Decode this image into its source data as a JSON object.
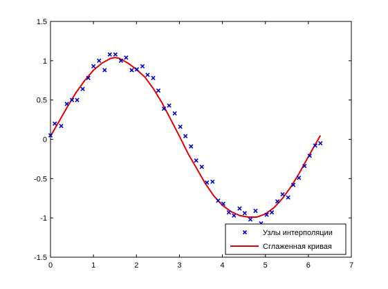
{
  "chart_data": {
    "type": "scatter",
    "xlim": [
      0,
      7
    ],
    "ylim": [
      -1.5,
      1.5
    ],
    "x_ticks": [
      0,
      1,
      2,
      3,
      4,
      5,
      6,
      7
    ],
    "y_ticks": [
      -1.5,
      -1,
      -0.5,
      0,
      0.5,
      1,
      1.5
    ],
    "x_tick_labels": [
      "0",
      "1",
      "2",
      "3",
      "4",
      "5",
      "6",
      "7"
    ],
    "y_tick_labels": [
      "-1.5",
      "-1",
      "-0.5",
      "0",
      "0.5",
      "1",
      "1.5"
    ],
    "grid": false,
    "legend_position": "bottom-right",
    "series": [
      {
        "name": "Узлы интерполяции",
        "type": "scatter",
        "marker": "x",
        "color": "#0000CC",
        "x": [
          0.0,
          0.1,
          0.25,
          0.38,
          0.5,
          0.62,
          0.75,
          0.88,
          1.0,
          1.13,
          1.26,
          1.38,
          1.51,
          1.64,
          1.76,
          1.89,
          2.01,
          2.14,
          2.26,
          2.39,
          2.51,
          2.64,
          2.76,
          2.89,
          3.02,
          3.14,
          3.27,
          3.39,
          3.52,
          3.64,
          3.77,
          3.9,
          4.02,
          4.15,
          4.27,
          4.4,
          4.52,
          4.65,
          4.77,
          4.9,
          5.03,
          5.15,
          5.28,
          5.4,
          5.53,
          5.65,
          5.78,
          5.91,
          6.03,
          6.16,
          6.28
        ],
        "y": [
          0.05,
          0.2,
          0.17,
          0.45,
          0.5,
          0.5,
          0.64,
          0.78,
          0.93,
          1.0,
          0.88,
          1.08,
          1.08,
          1.0,
          1.04,
          0.88,
          0.89,
          0.93,
          0.82,
          0.78,
          0.62,
          0.39,
          0.43,
          0.33,
          0.16,
          0.04,
          -0.09,
          -0.27,
          -0.35,
          -0.55,
          -0.54,
          -0.78,
          -0.82,
          -0.93,
          -0.97,
          -0.88,
          -0.94,
          -1.02,
          -0.91,
          -1.07,
          -0.96,
          -0.93,
          -0.79,
          -0.7,
          -0.74,
          -0.58,
          -0.49,
          -0.34,
          -0.21,
          -0.08,
          -0.05
        ]
      },
      {
        "name": "Сглаженная кривая",
        "type": "line",
        "color": "#E00000",
        "x": [
          0.0,
          0.2,
          0.4,
          0.6,
          0.8,
          1.0,
          1.2,
          1.4,
          1.5,
          1.6,
          1.8,
          2.0,
          2.2,
          2.4,
          2.6,
          2.8,
          3.0,
          3.2,
          3.4,
          3.6,
          3.8,
          4.0,
          4.2,
          4.4,
          4.6,
          4.8,
          5.0,
          5.2,
          5.4,
          5.6,
          5.8,
          6.0,
          6.28
        ],
        "y": [
          0.04,
          0.23,
          0.42,
          0.6,
          0.75,
          0.88,
          0.97,
          1.03,
          1.04,
          1.03,
          0.97,
          0.89,
          0.79,
          0.64,
          0.46,
          0.25,
          0.04,
          -0.18,
          -0.37,
          -0.56,
          -0.72,
          -0.84,
          -0.92,
          -0.97,
          -0.99,
          -0.99,
          -0.95,
          -0.87,
          -0.75,
          -0.6,
          -0.42,
          -0.22,
          0.05
        ]
      }
    ]
  }
}
